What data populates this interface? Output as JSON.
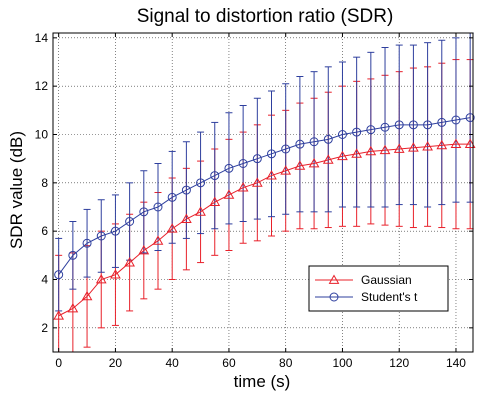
{
  "chart_data": {
    "type": "line",
    "title": "Signal to distortion ratio (SDR)",
    "xlabel": "time (s)",
    "ylabel": "SDR value (dB)",
    "xlim": [
      -2,
      146
    ],
    "ylim": [
      1,
      14.2
    ],
    "xticks": [
      0,
      20,
      40,
      60,
      80,
      100,
      120,
      140
    ],
    "yticks": [
      2,
      4,
      6,
      8,
      10,
      12,
      14
    ],
    "grid": true,
    "legend_position": "bottom-right",
    "x": [
      0,
      5,
      10,
      15,
      20,
      25,
      30,
      35,
      40,
      45,
      50,
      55,
      60,
      65,
      70,
      75,
      80,
      85,
      90,
      95,
      100,
      105,
      110,
      115,
      120,
      125,
      130,
      135,
      140,
      145
    ],
    "series": [
      {
        "name": "Gaussian",
        "color": "#e8202a",
        "marker": "triangle",
        "values": [
          2.5,
          2.8,
          3.3,
          4.0,
          4.2,
          4.7,
          5.2,
          5.6,
          6.1,
          6.5,
          6.8,
          7.2,
          7.5,
          7.8,
          8.0,
          8.3,
          8.5,
          8.7,
          8.8,
          8.95,
          9.1,
          9.2,
          9.3,
          9.35,
          9.4,
          9.45,
          9.5,
          9.55,
          9.6,
          9.6
        ],
        "errors": [
          2.5,
          2.3,
          2.1,
          2.0,
          2.1,
          2.0,
          2.0,
          2.0,
          2.1,
          2.1,
          2.1,
          2.2,
          2.3,
          2.3,
          2.4,
          2.5,
          2.5,
          2.6,
          2.7,
          2.8,
          2.9,
          3.0,
          3.0,
          3.1,
          3.2,
          3.3,
          3.3,
          3.4,
          3.5,
          3.5
        ]
      },
      {
        "name": "Student's t",
        "color": "#2e3f9e",
        "marker": "circle",
        "values": [
          4.2,
          5.0,
          5.5,
          5.8,
          6.0,
          6.4,
          6.8,
          7.0,
          7.4,
          7.7,
          8.0,
          8.3,
          8.6,
          8.8,
          9.0,
          9.2,
          9.4,
          9.6,
          9.7,
          9.8,
          10.0,
          10.1,
          10.2,
          10.3,
          10.4,
          10.4,
          10.4,
          10.5,
          10.6,
          10.7
        ],
        "errors": [
          1.5,
          1.4,
          1.4,
          1.5,
          1.5,
          1.6,
          1.7,
          1.8,
          1.9,
          2.0,
          2.1,
          2.2,
          2.3,
          2.4,
          2.5,
          2.6,
          2.7,
          2.8,
          2.9,
          3.0,
          3.0,
          3.1,
          3.2,
          3.3,
          3.3,
          3.3,
          3.4,
          3.4,
          3.4,
          3.5
        ]
      }
    ]
  }
}
